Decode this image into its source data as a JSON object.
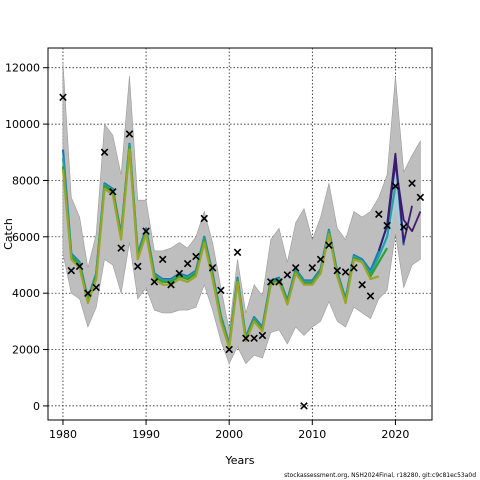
{
  "chart_data": {
    "type": "line",
    "title": "",
    "xlabel": "Years",
    "ylabel": "Catch",
    "xlim": [
      1978.2,
      2024.4
    ],
    "ylim": [
      -500,
      12700
    ],
    "x_ticks": [
      1980,
      1990,
      2000,
      2010,
      2020
    ],
    "y_ticks": [
      0,
      2000,
      4000,
      6000,
      8000,
      10000,
      12000
    ],
    "grid": true,
    "legend": "none",
    "colors": {
      "band": "#bebebe",
      "band_edge": "#9a9a9a",
      "forecast_band": "#a6cee3",
      "fit_olive": "#9aa52a",
      "fit_green": "#33a02c",
      "fit_teal": "#2aa0a0",
      "fit_blue": "#1f78b4",
      "fit_purple": "#3d1b6e",
      "observed": "#000000"
    },
    "confidence_band": {
      "x": [
        1980,
        1981,
        1982,
        1983,
        1984,
        1985,
        1986,
        1987,
        1988,
        1989,
        1990,
        1991,
        1992,
        1993,
        1994,
        1995,
        1996,
        1997,
        1998,
        1999,
        2000,
        2001,
        2002,
        2003,
        2004,
        2005,
        2006,
        2007,
        2008,
        2009,
        2010,
        2011,
        2012,
        2013,
        2014,
        2015,
        2016,
        2017,
        2018,
        2019,
        2020,
        2021,
        2022,
        2023
      ],
      "lower": [
        5400,
        4000,
        3800,
        2800,
        3500,
        5200,
        5000,
        4000,
        5800,
        3800,
        4200,
        3400,
        3300,
        3300,
        3400,
        3400,
        3500,
        4300,
        3400,
        2300,
        1500,
        2100,
        1500,
        1800,
        1700,
        2600,
        2700,
        2200,
        2800,
        2500,
        2800,
        3000,
        3700,
        3000,
        2800,
        3500,
        3300,
        3100,
        3800,
        4100,
        6100,
        4200,
        5000,
        5200
      ],
      "upper": [
        12200,
        7400,
        6700,
        4900,
        6100,
        10000,
        9600,
        8200,
        11700,
        7300,
        7300,
        5500,
        5500,
        5600,
        5800,
        5600,
        6000,
        6900,
        5800,
        4200,
        2700,
        5200,
        3300,
        4300,
        3900,
        5900,
        6300,
        5100,
        6500,
        7000,
        5900,
        6700,
        7900,
        6300,
        5900,
        6900,
        6700,
        6900,
        7400,
        8200,
        11700,
        8300,
        8900,
        9400
      ]
    },
    "series": [
      {
        "x": [
          1980,
          1981,
          1982,
          1983,
          1984,
          1985,
          1986,
          1987,
          1988,
          1989,
          1990,
          1991,
          1992,
          1993,
          1994,
          1995,
          1996,
          1997,
          1998,
          1999,
          2000,
          2001,
          2002,
          2003,
          2004,
          2005,
          2006,
          2007,
          2008,
          2009,
          2010,
          2011,
          2012,
          2013,
          2014,
          2015,
          2016,
          2017,
          2018
        ],
        "values": [
          8400,
          5200,
          4900,
          3650,
          4500,
          7700,
          7500,
          5900,
          9100,
          5200,
          6100,
          4500,
          4300,
          4300,
          4500,
          4400,
          4600,
          5800,
          4500,
          3000,
          2050,
          4400,
          2300,
          3000,
          2650,
          4300,
          4400,
          3600,
          4700,
          4300,
          4300,
          4700,
          6100,
          4600,
          3650,
          5200,
          5100,
          4500,
          4600
        ],
        "color": "#9aa52a"
      },
      {
        "x": [
          1980,
          1981,
          1982,
          1983,
          1984,
          1985,
          1986,
          1987,
          1988,
          1989,
          1990,
          1991,
          1992,
          1993,
          1994,
          1995,
          1996,
          1997,
          1998,
          1999,
          2000,
          2001,
          2002,
          2003,
          2004,
          2005,
          2006,
          2007,
          2008,
          2009,
          2010,
          2011,
          2012,
          2013,
          2014,
          2015,
          2016,
          2017,
          2018,
          2019
        ],
        "values": [
          8500,
          5300,
          5000,
          3700,
          4600,
          7800,
          7600,
          6000,
          9200,
          5300,
          6200,
          4600,
          4400,
          4400,
          4600,
          4500,
          4700,
          5900,
          4600,
          3100,
          2100,
          4450,
          2350,
          3050,
          2700,
          4350,
          4450,
          3650,
          4750,
          4350,
          4350,
          4750,
          6150,
          4650,
          3700,
          5250,
          5100,
          4600,
          5100,
          5600
        ],
        "color": "#33a02c"
      },
      {
        "x": [
          1980,
          1981,
          1982,
          1983,
          1984,
          1985,
          1986,
          1987,
          1988,
          1989,
          1990,
          1991,
          1992,
          1993,
          1994,
          1995,
          1996,
          1997,
          1998,
          1999,
          2000,
          2001,
          2002,
          2003,
          2004,
          2005,
          2006,
          2007,
          2008,
          2009,
          2010,
          2011,
          2012,
          2013,
          2014,
          2015,
          2016,
          2017,
          2018,
          2019,
          2020
        ],
        "values": [
          8800,
          5350,
          5050,
          3750,
          4650,
          7850,
          7650,
          6050,
          9250,
          5350,
          6250,
          4650,
          4450,
          4450,
          4650,
          4550,
          4750,
          5950,
          4650,
          3150,
          2150,
          4500,
          2400,
          3100,
          2750,
          4400,
          4500,
          3700,
          4800,
          4400,
          4400,
          4800,
          6200,
          4700,
          3750,
          5300,
          5150,
          4700,
          5300,
          6000,
          7800
        ],
        "color": "#2aa0a0"
      },
      {
        "x": [
          1980,
          1981,
          1982,
          1983,
          1984,
          1985,
          1986,
          1987,
          1988,
          1989,
          1990,
          1991,
          1992,
          1993,
          1994,
          1995,
          1996,
          1997,
          1998,
          1999,
          2000,
          2001,
          2002,
          2003,
          2004,
          2005,
          2006,
          2007,
          2008,
          2009,
          2010,
          2011,
          2012,
          2013,
          2014,
          2015,
          2016,
          2017,
          2018,
          2019,
          2020,
          2021
        ],
        "values": [
          9100,
          5400,
          5100,
          3800,
          4700,
          7900,
          7700,
          6100,
          9300,
          5400,
          6300,
          4700,
          4500,
          4500,
          4700,
          4600,
          4800,
          6000,
          4700,
          3200,
          2200,
          4550,
          2450,
          3150,
          2800,
          4450,
          4550,
          3750,
          4850,
          4450,
          4450,
          4850,
          6250,
          4750,
          3800,
          5350,
          5200,
          4800,
          5500,
          6400,
          8800,
          5700
        ],
        "color": "#1f78b4"
      },
      {
        "x": [
          2018,
          2019,
          2020,
          2021,
          2022
        ],
        "values": [
          5500,
          6400,
          8950,
          5800,
          7100
        ],
        "color": "#3d1b6e"
      },
      {
        "x": [
          2019,
          2020,
          2021,
          2022,
          2023
        ],
        "values": [
          6300,
          8600,
          6600,
          6200,
          6900
        ],
        "color": "#3d1b6e"
      }
    ],
    "observed": {
      "x": [
        1980,
        1981,
        1982,
        1983,
        1984,
        1985,
        1986,
        1987,
        1988,
        1989,
        1990,
        1991,
        1992,
        1993,
        1994,
        1995,
        1996,
        1997,
        1998,
        1999,
        2000,
        2001,
        2002,
        2003,
        2004,
        2005,
        2006,
        2007,
        2008,
        2009,
        2010,
        2011,
        2012,
        2013,
        2014,
        2015,
        2016,
        2017,
        2018,
        2019,
        2020,
        2021,
        2022,
        2023
      ],
      "values": [
        10950,
        4800,
        4950,
        4000,
        4200,
        9000,
        7600,
        5600,
        9650,
        4950,
        6200,
        4400,
        5200,
        4300,
        4700,
        5050,
        5300,
        6650,
        4900,
        4100,
        2000,
        5450,
        2400,
        2400,
        2500,
        4400,
        4400,
        4650,
        4900,
        0,
        4900,
        5200,
        5700,
        4800,
        4750,
        4900,
        4300,
        3900,
        6800,
        6400,
        7800,
        6350,
        7900,
        7400
      ]
    }
  },
  "footer": {
    "text": "stockassessment.org, NSH2024Final, r18280, git:c9c81ec53a0d"
  }
}
